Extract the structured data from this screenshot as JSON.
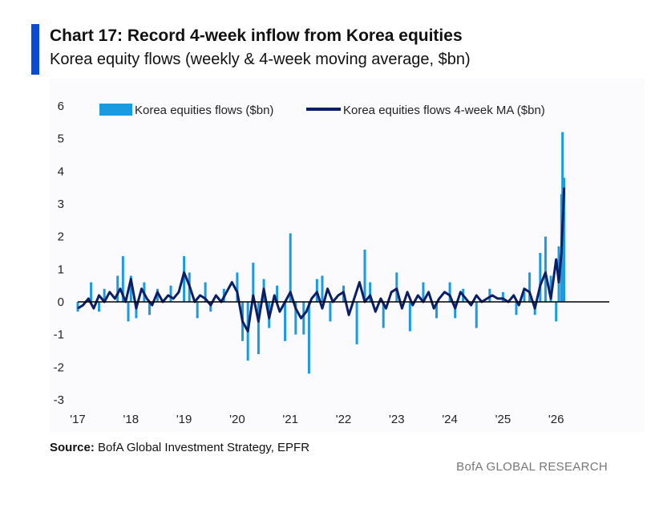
{
  "header": {
    "title": "Chart 17: Record 4-week inflow from Korea equities",
    "subtitle": "Korea equity flows (weekly & 4-week moving average, $bn)"
  },
  "footer": {
    "source_label": "Source:",
    "source_text": " BofA Global Investment Strategy, EPFR",
    "brand": "BofA GLOBAL RESEARCH"
  },
  "colors": {
    "accent": "#0a4bd6",
    "weekly": "#1a9be0",
    "ma": "#0b1f66",
    "zero_line": "#000000"
  },
  "chart_data": {
    "type": "bar",
    "legend": [
      "Korea equities flows ($bn)",
      "Korea equities flows 4-week MA ($bn)"
    ],
    "legend_position": "top",
    "grid": false,
    "ylim": [
      -3,
      6
    ],
    "y_ticks": [
      "-3",
      "-2",
      "-1",
      "0",
      "1",
      "2",
      "3",
      "4",
      "5",
      "6"
    ],
    "x_ticks": [
      "'17",
      "'18",
      "'19",
      "'20",
      "'21",
      "'22",
      "'23",
      "'24",
      "'25",
      "'26"
    ],
    "x_tick_positions": [
      2017,
      2018,
      2019,
      2020,
      2021,
      2022,
      2023,
      2024,
      2025,
      2026
    ],
    "xlim": [
      2017,
      2027
    ],
    "series": [
      {
        "name": "Korea equities flows ($bn)",
        "style": "bars",
        "x": [
          2017.0,
          2017.25,
          2017.4,
          2017.5,
          2017.75,
          2017.85,
          2017.95,
          2018.0,
          2018.1,
          2018.25,
          2018.35,
          2018.5,
          2018.75,
          2019.0,
          2019.1,
          2019.25,
          2019.4,
          2019.5,
          2019.75,
          2020.0,
          2020.1,
          2020.2,
          2020.3,
          2020.4,
          2020.5,
          2020.6,
          2020.75,
          2020.9,
          2021.0,
          2021.1,
          2021.25,
          2021.35,
          2021.5,
          2021.6,
          2021.75,
          2022.0,
          2022.25,
          2022.4,
          2022.5,
          2022.75,
          2023.0,
          2023.25,
          2023.5,
          2023.75,
          2024.0,
          2024.1,
          2024.25,
          2024.5,
          2024.75,
          2025.0,
          2025.25,
          2025.4,
          2025.5,
          2025.6,
          2025.7,
          2025.8,
          2025.9,
          2026.0,
          2026.05,
          2026.1,
          2026.12,
          2026.15
        ],
        "values": [
          -0.3,
          0.6,
          -0.3,
          0.4,
          0.8,
          1.4,
          -0.6,
          0.8,
          -0.5,
          0.6,
          -0.4,
          0.4,
          0.5,
          1.4,
          0.9,
          -0.5,
          0.6,
          -0.3,
          0.4,
          0.9,
          -1.2,
          -1.8,
          1.2,
          -1.6,
          0.7,
          -0.8,
          0.5,
          -1.2,
          2.1,
          -1.0,
          -1.0,
          -2.2,
          0.7,
          0.8,
          -0.6,
          0.5,
          -1.3,
          1.6,
          0.6,
          -0.8,
          0.9,
          -0.9,
          0.6,
          -0.5,
          0.6,
          -0.5,
          0.4,
          -0.8,
          0.4,
          0.3,
          -0.4,
          0.3,
          0.9,
          -0.4,
          1.5,
          2.0,
          0.8,
          -0.6,
          1.7,
          3.3,
          5.2,
          3.8
        ]
      },
      {
        "name": "Korea equities flows 4-week MA ($bn)",
        "style": "line",
        "x": [
          2017.0,
          2017.1,
          2017.2,
          2017.3,
          2017.4,
          2017.5,
          2017.6,
          2017.7,
          2017.8,
          2017.9,
          2018.0,
          2018.1,
          2018.2,
          2018.3,
          2018.4,
          2018.5,
          2018.6,
          2018.7,
          2018.8,
          2018.9,
          2019.0,
          2019.1,
          2019.2,
          2019.3,
          2019.4,
          2019.5,
          2019.6,
          2019.7,
          2019.8,
          2019.9,
          2020.0,
          2020.1,
          2020.2,
          2020.3,
          2020.4,
          2020.5,
          2020.6,
          2020.7,
          2020.8,
          2020.9,
          2021.0,
          2021.1,
          2021.2,
          2021.3,
          2021.4,
          2021.5,
          2021.6,
          2021.7,
          2021.8,
          2021.9,
          2022.0,
          2022.1,
          2022.2,
          2022.3,
          2022.4,
          2022.5,
          2022.6,
          2022.7,
          2022.8,
          2022.9,
          2023.0,
          2023.1,
          2023.2,
          2023.3,
          2023.4,
          2023.5,
          2023.6,
          2023.7,
          2023.8,
          2023.9,
          2024.0,
          2024.1,
          2024.2,
          2024.3,
          2024.4,
          2024.5,
          2024.6,
          2024.7,
          2024.8,
          2024.9,
          2025.0,
          2025.1,
          2025.2,
          2025.3,
          2025.4,
          2025.5,
          2025.6,
          2025.7,
          2025.8,
          2025.9,
          2026.0,
          2026.05,
          2026.1,
          2026.15
        ],
        "values": [
          -0.2,
          -0.1,
          0.1,
          -0.2,
          0.2,
          0.0,
          0.3,
          0.1,
          0.4,
          0.0,
          0.7,
          -0.2,
          0.4,
          0.1,
          -0.1,
          0.3,
          0.0,
          0.2,
          0.1,
          0.3,
          0.9,
          0.5,
          0.0,
          0.2,
          0.1,
          -0.1,
          0.2,
          0.0,
          0.3,
          0.6,
          0.3,
          -0.6,
          -0.9,
          0.2,
          -0.6,
          0.4,
          -0.5,
          0.2,
          -0.3,
          0.0,
          0.3,
          -0.2,
          -0.5,
          -0.3,
          0.1,
          0.3,
          -0.2,
          0.4,
          0.0,
          0.2,
          0.3,
          -0.4,
          0.1,
          0.6,
          0.0,
          0.2,
          -0.3,
          0.1,
          -0.2,
          0.3,
          0.4,
          -0.2,
          0.3,
          -0.1,
          0.2,
          0.0,
          0.3,
          -0.2,
          0.1,
          0.3,
          0.2,
          -0.2,
          0.3,
          0.1,
          -0.1,
          0.2,
          0.0,
          0.1,
          0.2,
          0.1,
          0.1,
          0.0,
          0.2,
          -0.1,
          0.4,
          0.3,
          -0.2,
          0.5,
          0.9,
          0.1,
          1.3,
          0.6,
          1.5,
          3.5
        ]
      }
    ]
  }
}
